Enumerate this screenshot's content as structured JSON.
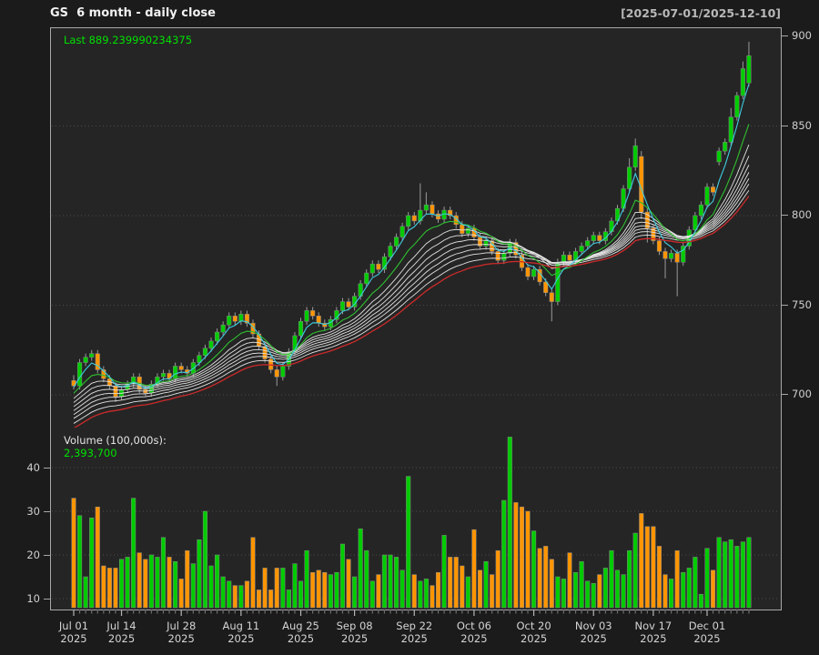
{
  "header": {
    "title": "GS  6 month - daily close",
    "date_range": "[2025-07-01/2025-12-10]"
  },
  "price_panel": {
    "last_label": "Last 889.239990234375",
    "y_ticks": [
      900,
      850,
      800,
      750,
      700
    ],
    "y_grid": [
      850,
      800,
      750,
      700
    ]
  },
  "volume_panel": {
    "label": "Volume (100,000s):",
    "last_volume_text": "2,393,700",
    "y_ticks": [
      40,
      30,
      20,
      10
    ],
    "y_grid": [
      40,
      30,
      20,
      10
    ]
  },
  "x_axis": {
    "labels": [
      {
        "line1": "Jul 01",
        "line2": "2025",
        "index": 0
      },
      {
        "line1": "Jul 14",
        "line2": "2025",
        "index": 8
      },
      {
        "line1": "Jul 28",
        "line2": "2025",
        "index": 18
      },
      {
        "line1": "Aug 11",
        "line2": "2025",
        "index": 28
      },
      {
        "line1": "Aug 25",
        "line2": "2025",
        "index": 38
      },
      {
        "line1": "Sep 08",
        "line2": "2025",
        "index": 47
      },
      {
        "line1": "Sep 22",
        "line2": "2025",
        "index": 57
      },
      {
        "line1": "Oct 06",
        "line2": "2025",
        "index": 67
      },
      {
        "line1": "Oct 20",
        "line2": "2025",
        "index": 77
      },
      {
        "line1": "Nov 03",
        "line2": "2025",
        "index": 87
      },
      {
        "line1": "Nov 17",
        "line2": "2025",
        "index": 97
      },
      {
        "line1": "Dec 01",
        "line2": "2025",
        "index": 106
      }
    ]
  },
  "chart_data": {
    "type": "candlestick+volume",
    "symbol": "GS",
    "title": "GS  6 month - daily close",
    "period_label": "[2025-07-01/2025-12-10]",
    "price_axis_range": [
      683,
      910
    ],
    "volume_axis_range": [
      7.5,
      49
    ],
    "grid": "dotted-horizontal",
    "dates": [
      "Jul 01",
      "Jul 02",
      "Jul 03",
      "Jul 07",
      "Jul 08",
      "Jul 09",
      "Jul 10",
      "Jul 11",
      "Jul 14",
      "Jul 15",
      "Jul 16",
      "Jul 17",
      "Jul 18",
      "Jul 21",
      "Jul 22",
      "Jul 23",
      "Jul 24",
      "Jul 25",
      "Jul 28",
      "Jul 29",
      "Jul 30",
      "Jul 31",
      "Aug 01",
      "Aug 04",
      "Aug 05",
      "Aug 06",
      "Aug 07",
      "Aug 08",
      "Aug 11",
      "Aug 12",
      "Aug 13",
      "Aug 14",
      "Aug 15",
      "Aug 18",
      "Aug 19",
      "Aug 20",
      "Aug 21",
      "Aug 22",
      "Aug 25",
      "Aug 26",
      "Aug 27",
      "Aug 28",
      "Aug 29",
      "Sep 02",
      "Sep 03",
      "Sep 04",
      "Sep 05",
      "Sep 08",
      "Sep 09",
      "Sep 10",
      "Sep 11",
      "Sep 12",
      "Sep 15",
      "Sep 16",
      "Sep 17",
      "Sep 18",
      "Sep 19",
      "Sep 22",
      "Sep 23",
      "Sep 24",
      "Sep 25",
      "Sep 26",
      "Sep 29",
      "Sep 30",
      "Oct 01",
      "Oct 02",
      "Oct 03",
      "Oct 06",
      "Oct 07",
      "Oct 08",
      "Oct 09",
      "Oct 10",
      "Oct 13",
      "Oct 14",
      "Oct 15",
      "Oct 16",
      "Oct 17",
      "Oct 20",
      "Oct 21",
      "Oct 22",
      "Oct 23",
      "Oct 24",
      "Oct 27",
      "Oct 28",
      "Oct 29",
      "Oct 30",
      "Oct 31",
      "Nov 03",
      "Nov 04",
      "Nov 05",
      "Nov 06",
      "Nov 07",
      "Nov 10",
      "Nov 11",
      "Nov 12",
      "Nov 13",
      "Nov 14",
      "Nov 17",
      "Nov 18",
      "Nov 19",
      "Nov 20",
      "Nov 21",
      "Nov 24",
      "Nov 25",
      "Nov 26",
      "Nov 28",
      "Dec 01",
      "Dec 02",
      "Dec 03",
      "Dec 04",
      "Dec 05",
      "Dec 08",
      "Dec 09",
      "Dec 10"
    ],
    "open": [
      708,
      705,
      718,
      721,
      723,
      714,
      709,
      705,
      699,
      703,
      706,
      710,
      703,
      701,
      706,
      710,
      712,
      709,
      716,
      714,
      712,
      718,
      722,
      726,
      730,
      735,
      739,
      744,
      741,
      745,
      740,
      734,
      727,
      720,
      714,
      710,
      716,
      724,
      733,
      741,
      747,
      744,
      740,
      738,
      742,
      747,
      752,
      749,
      755,
      762,
      768,
      773,
      770,
      777,
      783,
      788,
      794,
      800,
      797,
      803,
      806,
      801,
      798,
      803,
      800,
      795,
      790,
      793,
      788,
      783,
      786,
      780,
      775,
      779,
      785,
      778,
      771,
      766,
      770,
      763,
      757,
      752,
      774,
      778,
      775,
      780,
      783,
      786,
      789,
      786,
      791,
      797,
      804,
      815,
      827,
      833,
      802,
      793,
      786,
      780,
      776,
      779,
      774,
      783,
      792,
      800,
      806,
      816,
      830,
      836,
      841,
      855,
      867,
      874
    ],
    "high": [
      711,
      720,
      723,
      725,
      725,
      716,
      711,
      707,
      705,
      708,
      712,
      712,
      705,
      708,
      712,
      714,
      714,
      718,
      718,
      716,
      720,
      724,
      728,
      732,
      737,
      741,
      746,
      746,
      747,
      747,
      742,
      736,
      729,
      722,
      716,
      718,
      726,
      735,
      743,
      749,
      749,
      746,
      742,
      744,
      749,
      754,
      754,
      757,
      764,
      770,
      775,
      775,
      779,
      785,
      790,
      796,
      802,
      802,
      818,
      813,
      808,
      803,
      805,
      805,
      802,
      797,
      795,
      795,
      790,
      788,
      788,
      782,
      781,
      787,
      787,
      780,
      773,
      772,
      772,
      765,
      759,
      776,
      780,
      780,
      782,
      785,
      788,
      791,
      791,
      793,
      799,
      806,
      817,
      832,
      843,
      836,
      804,
      795,
      788,
      782,
      781,
      781,
      785,
      794,
      802,
      808,
      818,
      818,
      838,
      843,
      860,
      869,
      886,
      897
    ],
    "low": [
      703,
      703,
      716,
      719,
      712,
      707,
      703,
      696,
      697,
      701,
      704,
      701,
      699,
      699,
      704,
      708,
      707,
      707,
      712,
      710,
      710,
      716,
      720,
      724,
      728,
      733,
      737,
      739,
      739,
      738,
      732,
      725,
      718,
      712,
      705,
      708,
      714,
      722,
      731,
      739,
      742,
      738,
      736,
      736,
      740,
      745,
      747,
      747,
      753,
      760,
      766,
      768,
      768,
      775,
      781,
      786,
      792,
      795,
      795,
      801,
      799,
      796,
      796,
      798,
      793,
      788,
      788,
      786,
      781,
      781,
      778,
      773,
      773,
      777,
      776,
      769,
      764,
      764,
      761,
      755,
      741,
      750,
      772,
      773,
      773,
      778,
      781,
      784,
      784,
      784,
      789,
      795,
      802,
      813,
      825,
      798,
      785,
      784,
      778,
      765,
      774,
      755,
      772,
      781,
      790,
      798,
      804,
      811,
      828,
      834,
      839,
      853,
      865,
      872
    ],
    "close": [
      705,
      718,
      721,
      723,
      714,
      709,
      705,
      699,
      703,
      706,
      710,
      703,
      701,
      706,
      710,
      712,
      709,
      716,
      714,
      712,
      718,
      722,
      726,
      730,
      735,
      739,
      744,
      741,
      745,
      740,
      734,
      727,
      720,
      714,
      710,
      716,
      724,
      733,
      741,
      747,
      744,
      740,
      738,
      742,
      747,
      752,
      749,
      755,
      762,
      768,
      773,
      770,
      777,
      783,
      788,
      794,
      800,
      797,
      803,
      806,
      801,
      798,
      803,
      800,
      795,
      790,
      793,
      788,
      783,
      786,
      780,
      775,
      779,
      785,
      778,
      771,
      766,
      770,
      763,
      757,
      752,
      774,
      778,
      775,
      780,
      783,
      786,
      789,
      786,
      791,
      797,
      804,
      815,
      827,
      839,
      802,
      793,
      786,
      780,
      776,
      779,
      774,
      783,
      792,
      800,
      806,
      816,
      813,
      836,
      841,
      855,
      867,
      882,
      889.24
    ],
    "volume_100k": [
      33,
      29,
      15,
      28.5,
      31,
      17.5,
      17,
      17,
      19,
      19.5,
      33,
      20.5,
      19,
      20,
      19.5,
      24,
      19.5,
      18.5,
      14.5,
      21,
      18,
      23.5,
      30,
      17.5,
      20,
      15,
      14,
      13,
      13,
      14,
      24,
      12,
      17,
      12,
      17,
      17,
      12,
      18,
      14,
      21,
      16,
      16.5,
      16,
      15.5,
      16,
      22.5,
      19,
      15,
      26,
      21,
      14,
      15.5,
      20,
      20,
      19.5,
      16.5,
      38,
      15.5,
      14,
      14.5,
      13,
      16,
      24.5,
      19.5,
      19.5,
      17.5,
      15,
      25.8,
      16.5,
      18.5,
      15.5,
      21,
      32.5,
      47,
      32,
      31,
      30,
      25.5,
      21.5,
      22,
      19,
      15,
      14.5,
      20.5,
      16,
      18.5,
      14,
      13.5,
      15.5,
      17,
      21,
      16.5,
      15.5,
      21,
      25,
      29.5,
      26.5,
      26.5,
      22,
      15.5,
      14.5,
      21,
      16,
      17,
      19.5,
      11,
      21.5,
      16.5,
      24,
      23,
      23.5,
      22,
      23,
      24
    ],
    "ma_overlays": {
      "white_periods": [
        13,
        16,
        19,
        22,
        25,
        28,
        32
      ],
      "cyan_period": 4,
      "green_period": 9,
      "red_period": 36,
      "lead_in": {
        "n": 60,
        "start": 615,
        "end": 706
      }
    },
    "colors": {
      "up": "#00cc00",
      "down": "#ff9500",
      "wick": "#9a9a9a",
      "candle_border": "#8a8a8a",
      "ma_white": "#e2e2e2",
      "ma_cyan": "#3ecde0",
      "ma_green": "#2fbf2f",
      "ma_red": "#cc2a2a",
      "grid": "#4a4a4a",
      "panel_bg": "#252525",
      "page_bg": "#1b1b1b",
      "axis": "#a8a8a8",
      "text": "#cfcfcf",
      "accent_green_text": "#00e100"
    }
  }
}
